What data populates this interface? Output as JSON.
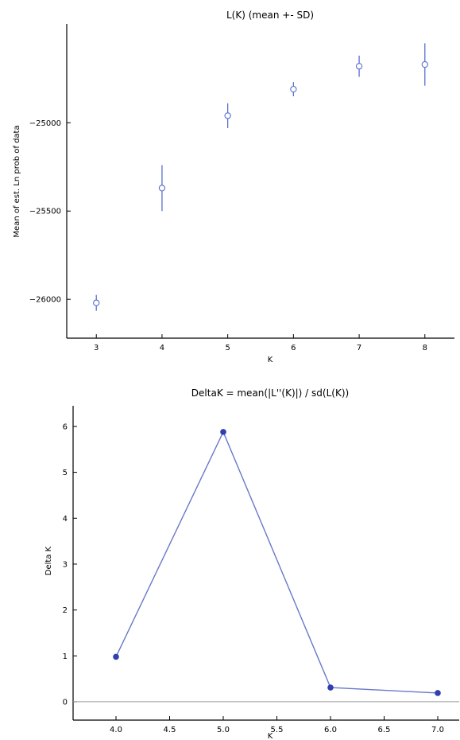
{
  "chart_data": [
    {
      "type": "scatter",
      "title": "L(K) (mean +- SD)",
      "xlabel": "K",
      "ylabel": "Mean of est. Ln prob of data",
      "x": [
        3,
        4,
        5,
        6,
        7,
        8
      ],
      "y": [
        -26020,
        -25370,
        -24960,
        -24810,
        -24680,
        -24670
      ],
      "sd": [
        45,
        130,
        70,
        40,
        60,
        120
      ],
      "xlim": [
        2.55,
        8.45
      ],
      "ylim": [
        -26220,
        -24440
      ],
      "xticks": [
        3,
        4,
        5,
        6,
        7,
        8
      ],
      "yticks": [
        -26000,
        -25500,
        -25000
      ],
      "xtick_labels": [
        "3",
        "4",
        "5",
        "6",
        "7",
        "8"
      ],
      "ytick_labels": [
        "−26000",
        "−25500",
        "−25000"
      ],
      "marker": "open-circle-with-error-bar",
      "color": "#5a6fcf",
      "grid": false
    },
    {
      "type": "line",
      "title": "DeltaK = mean(|L''(K)|) / sd(L(K))",
      "xlabel": "K",
      "ylabel": "Delta K",
      "x": [
        4.0,
        5.0,
        6.0,
        7.0
      ],
      "y": [
        0.98,
        5.88,
        0.31,
        0.19
      ],
      "xlim": [
        3.6,
        7.2
      ],
      "ylim": [
        -0.4,
        6.45
      ],
      "xticks": [
        4.0,
        4.5,
        5.0,
        5.5,
        6.0,
        6.5,
        7.0
      ],
      "yticks": [
        0,
        1,
        2,
        3,
        4,
        5,
        6
      ],
      "xtick_labels": [
        "4.0",
        "4.5",
        "5.0",
        "5.5",
        "6.0",
        "6.5",
        "7.0"
      ],
      "ytick_labels": [
        "0",
        "1",
        "2",
        "3",
        "4",
        "5",
        "6"
      ],
      "zero_line": true,
      "marker": "filled-circle",
      "color": "#2f3fb0",
      "line_color": "#6a78c8",
      "grid": false
    }
  ]
}
